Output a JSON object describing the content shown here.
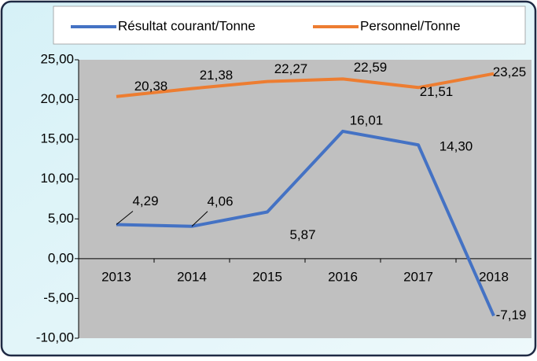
{
  "chart_data": {
    "type": "line",
    "categories": [
      "2013",
      "2014",
      "2015",
      "2016",
      "2017",
      "2018"
    ],
    "series": [
      {
        "name": "Résultat courant/Tonne",
        "color": "#4472c4",
        "values": [
          4.29,
          4.06,
          5.87,
          16.01,
          14.3,
          -7.19
        ],
        "value_labels": [
          "4,29",
          "4,06",
          "5,87",
          "16,01",
          "14,30",
          "-7,19"
        ]
      },
      {
        "name": "Personnel/Tonne",
        "color": "#ed7d31",
        "values": [
          20.38,
          21.38,
          22.27,
          22.59,
          21.51,
          23.25
        ],
        "value_labels": [
          "20,38",
          "21,38",
          "22,27",
          "22,59",
          "21,51",
          "23,25"
        ]
      }
    ],
    "ylim": [
      -10,
      25
    ],
    "yticks": [
      {
        "value": -10,
        "label": "-10,00"
      },
      {
        "value": -5,
        "label": "-5,00"
      },
      {
        "value": 0,
        "label": "0,00"
      },
      {
        "value": 5,
        "label": "5,00"
      },
      {
        "value": 10,
        "label": "10,00"
      },
      {
        "value": 15,
        "label": "15,00"
      },
      {
        "value": 20,
        "label": "20,00"
      },
      {
        "value": 25,
        "label": "25,00"
      }
    ],
    "grid": false,
    "legend": "top"
  }
}
